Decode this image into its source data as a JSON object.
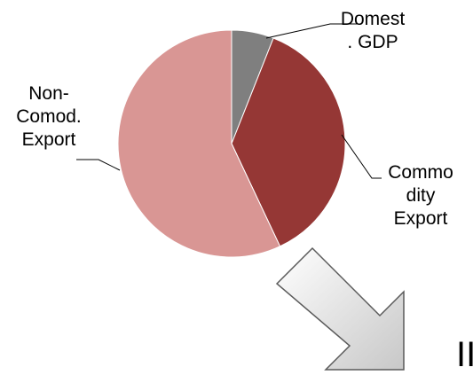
{
  "chart_data": {
    "type": "pie",
    "slices": [
      {
        "label_lines": [
          "Domest",
          ". GDP"
        ],
        "value": 6,
        "color": "#7f7f7f"
      },
      {
        "label_lines": [
          "Commo",
          "dity",
          "Export"
        ],
        "value": 37,
        "color": "#953735"
      },
      {
        "label_lines": [
          "Non-",
          "Comod.",
          "Export"
        ],
        "value": 57,
        "color": "#d99694"
      }
    ],
    "start": "12 o'clock",
    "direction": "clockwise"
  },
  "overlay": {
    "arrow_color": "#e6e6e6",
    "partial_text": "II"
  }
}
